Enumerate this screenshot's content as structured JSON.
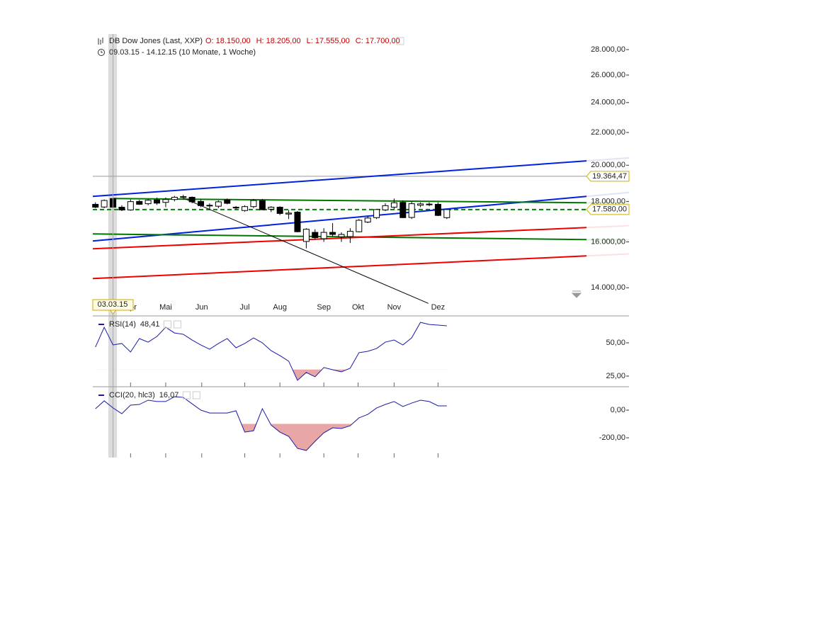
{
  "chart_data": [
    {
      "type": "candlestick",
      "title": "DB Dow Jones (Last, XXP)",
      "readout": [
        "O: 18.150,00",
        "H: 18.205,00",
        "L: 17.555,00",
        "C: 17.700,00"
      ],
      "subtitle": "09.03.15 - 14.12.15 (10 Monate, 1 Woche)",
      "open": [
        17850,
        17710,
        18150,
        17700,
        17560,
        18000,
        17880,
        18080,
        17950,
        18100,
        18230,
        18220,
        18000,
        17780,
        17750,
        18080,
        17700,
        17530,
        17730,
        18050,
        17600,
        17700,
        17350,
        17450,
        16020,
        16450,
        16150,
        16450,
        16240,
        16250,
        16480,
        16950,
        17170,
        17560,
        17700,
        17950,
        17180,
        17800,
        17860,
        17850,
        17170
      ],
      "high": [
        17950,
        18100,
        18205,
        17800,
        18100,
        18080,
        18120,
        18200,
        18200,
        18290,
        18350,
        18260,
        18100,
        17900,
        18050,
        18150,
        17760,
        17800,
        18130,
        18130,
        17750,
        17750,
        17550,
        17500,
        16650,
        16600,
        16650,
        16900,
        16450,
        16650,
        17100,
        17250,
        17600,
        17900,
        18150,
        18050,
        18000,
        17950,
        17950,
        17950,
        17600
      ],
      "low": [
        17650,
        17650,
        17555,
        17500,
        17520,
        17820,
        17800,
        17820,
        17700,
        18000,
        18100,
        17900,
        17700,
        17600,
        17650,
        17850,
        17600,
        17470,
        17650,
        17550,
        17450,
        17300,
        17100,
        16450,
        15700,
        16100,
        16000,
        16250,
        16000,
        15950,
        16450,
        16900,
        17100,
        17500,
        17600,
        17150,
        17100,
        17700,
        17750,
        17250,
        17100
      ],
      "close": [
        17700,
        18050,
        17700,
        17560,
        17990,
        17850,
        18060,
        17910,
        18100,
        18220,
        18250,
        17980,
        17780,
        17800,
        17980,
        17900,
        17660,
        17730,
        18050,
        17570,
        17700,
        17380,
        17400,
        16480,
        16600,
        16200,
        16450,
        16350,
        16350,
        16500,
        17040,
        17150,
        17580,
        17780,
        17930,
        17170,
        17880,
        17870,
        17850,
        17280,
        17580
      ],
      "up_color": "#ffffff",
      "down_color": "#000000",
      "xlim": [
        -0.3,
        55.9
      ],
      "xticks": [
        {
          "value": 4,
          "label": "Apr"
        },
        {
          "value": 8,
          "label": "Mai"
        },
        {
          "value": 12.1,
          "label": "Jun"
        },
        {
          "value": 17,
          "label": "Jul"
        },
        {
          "value": 21,
          "label": "Aug"
        },
        {
          "value": 26,
          "label": "Sep"
        },
        {
          "value": 29.9,
          "label": "Okt"
        },
        {
          "value": 34,
          "label": "Nov"
        },
        {
          "value": 39,
          "label": "Dez"
        }
      ],
      "ylim": [
        12900,
        29300
      ],
      "log_scale": true,
      "yticks": [
        {
          "value": 28000,
          "label": "28.000,00"
        },
        {
          "value": 26000,
          "label": "26.000,00"
        },
        {
          "value": 24000,
          "label": "24.000,00"
        },
        {
          "value": 22000,
          "label": "22.000,00"
        },
        {
          "value": 20000,
          "label": "20.000,00"
        },
        {
          "value": 18000,
          "label": "18.000,00"
        },
        {
          "value": 16000,
          "label": "16.000,00"
        },
        {
          "value": 14000,
          "label": "14.000,00"
        }
      ],
      "levels": [
        {
          "value": 19364.47,
          "label": "19.364,47",
          "color": "#999999",
          "style": "solid"
        },
        {
          "value": 17580,
          "label": "17.580,00",
          "color": "#008000",
          "style": "dashed"
        }
      ],
      "trendlines": [
        {
          "color": "#0022dd",
          "from": [
            -0.3,
            18267
          ],
          "to": [
            55.9,
            20252
          ]
        },
        {
          "color": "#0022dd",
          "from": [
            -0.3,
            16041
          ],
          "to": [
            55.9,
            18267
          ]
        },
        {
          "color": "#007700",
          "from": [
            2,
            18155
          ],
          "to": [
            55.9,
            17931
          ]
        },
        {
          "color": "#007700",
          "from": [
            -0.3,
            16375
          ],
          "to": [
            55.9,
            16108
          ]
        },
        {
          "color": "#ee0000",
          "from": [
            -0.3,
            15683
          ],
          "to": [
            55.9,
            16682
          ]
        },
        {
          "color": "#ee0000",
          "from": [
            -0.3,
            14381
          ],
          "to": [
            55.9,
            15361
          ]
        },
        {
          "color": "#000000",
          "from": [
            10.1,
            18155
          ],
          "to": [
            37.9,
            13378
          ]
        }
      ],
      "cursor": {
        "x": 2,
        "label": "03.03.15"
      }
    },
    {
      "type": "line",
      "series": [
        {
          "name": "RSI(14)",
          "readout": "48,41",
          "color": "#1a1aaa",
          "values": [
            46.8,
            61.7,
            48.41,
            49.5,
            43.1,
            53.2,
            50.5,
            54.8,
            61.7,
            57.4,
            56.4,
            52.1,
            48.4,
            45.2,
            49.5,
            53.2,
            46.3,
            49.5,
            53.7,
            50,
            44.1,
            40.4,
            36.2,
            21.8,
            27.7,
            24.5,
            31.4,
            29.8,
            28.2,
            30.9,
            42.6,
            43.6,
            45.7,
            50.5,
            52.1,
            48.4,
            53.7,
            65.4,
            63.8,
            63.3,
            62.8
          ]
        }
      ],
      "ylim": [
        17,
        69.7
      ],
      "yticks": [
        {
          "value": 50,
          "label": "50,00"
        },
        {
          "value": 25,
          "label": "25,00"
        }
      ],
      "threshold": 30,
      "fill_color": "#e8a6a6"
    },
    {
      "type": "line",
      "series": [
        {
          "name": "CCI(20, hlc3)",
          "readout": "16,07",
          "color": "#1a1aaa",
          "values": [
            10,
            67,
            16.07,
            -26,
            36,
            41,
            72,
            62,
            62,
            97,
            92,
            46,
            0,
            -21,
            -21,
            -21,
            -5,
            -159,
            -149,
            10,
            -108,
            -159,
            -190,
            -277,
            -292,
            -226,
            -164,
            -128,
            -133,
            -113,
            -56,
            -31,
            15,
            41,
            62,
            26,
            51,
            72,
            62,
            31,
            31
          ]
        }
      ],
      "ylim": [
        -343,
        164
      ],
      "yticks": [
        {
          "value": 0,
          "label": "0,00"
        },
        {
          "value": -200,
          "label": "-200,00"
        }
      ],
      "threshold": -100,
      "fill_color": "#e8a6a6"
    }
  ]
}
